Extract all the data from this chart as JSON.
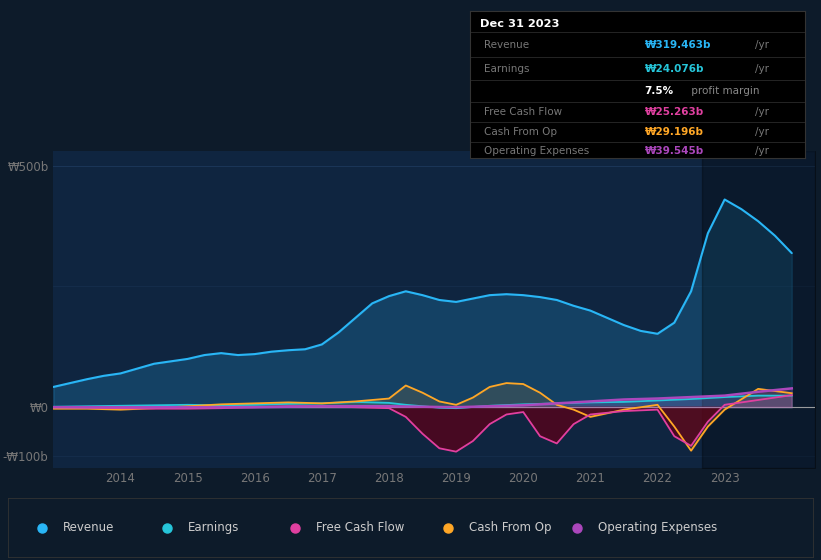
{
  "bg_color": "#0d1b2a",
  "chart_bg_color": "#0f2540",
  "ylim": [
    -125,
    530
  ],
  "xlim_start": 2013.0,
  "xlim_end": 2024.35,
  "xticks": [
    2014,
    2015,
    2016,
    2017,
    2018,
    2019,
    2020,
    2021,
    2022,
    2023
  ],
  "yticks": [
    -100,
    0,
    500
  ],
  "ytick_labels": [
    "-₩100b",
    "₩0",
    "₩500b"
  ],
  "revenue_color": "#29b6f6",
  "earnings_color": "#26c6da",
  "fcf_color": "#e040a0",
  "cfop_color": "#ffa726",
  "opex_color": "#ab47bc",
  "revenue_x": [
    2013.0,
    2013.25,
    2013.5,
    2013.75,
    2014.0,
    2014.25,
    2014.5,
    2014.75,
    2015.0,
    2015.25,
    2015.5,
    2015.75,
    2016.0,
    2016.25,
    2016.5,
    2016.75,
    2017.0,
    2017.25,
    2017.5,
    2017.75,
    2018.0,
    2018.25,
    2018.5,
    2018.75,
    2019.0,
    2019.25,
    2019.5,
    2019.75,
    2020.0,
    2020.25,
    2020.5,
    2020.75,
    2021.0,
    2021.25,
    2021.5,
    2021.75,
    2022.0,
    2022.25,
    2022.5,
    2022.75,
    2023.0,
    2023.25,
    2023.5,
    2023.75,
    2024.0
  ],
  "revenue_y": [
    42,
    50,
    58,
    65,
    70,
    80,
    90,
    95,
    100,
    108,
    112,
    108,
    110,
    115,
    118,
    120,
    130,
    155,
    185,
    215,
    230,
    240,
    232,
    222,
    218,
    225,
    232,
    234,
    232,
    228,
    222,
    210,
    200,
    185,
    170,
    158,
    152,
    175,
    240,
    360,
    430,
    410,
    385,
    355,
    319
  ],
  "earnings_x": [
    2013.0,
    2013.5,
    2014.0,
    2014.5,
    2015.0,
    2015.5,
    2016.0,
    2016.5,
    2017.0,
    2017.5,
    2018.0,
    2018.25,
    2018.5,
    2018.75,
    2019.0,
    2019.5,
    2020.0,
    2020.5,
    2021.0,
    2021.5,
    2022.0,
    2022.5,
    2023.0,
    2023.5,
    2024.0
  ],
  "earnings_y": [
    1,
    2,
    3,
    4,
    5,
    4,
    5,
    7,
    8,
    11,
    9,
    5,
    2,
    -1,
    -2,
    3,
    6,
    8,
    10,
    11,
    14,
    17,
    21,
    24,
    24
  ],
  "fcf_x": [
    2013.0,
    2013.5,
    2014.0,
    2014.5,
    2015.0,
    2015.5,
    2016.0,
    2016.5,
    2017.0,
    2017.5,
    2018.0,
    2018.25,
    2018.5,
    2018.75,
    2019.0,
    2019.25,
    2019.5,
    2019.75,
    2020.0,
    2020.25,
    2020.5,
    2020.75,
    2021.0,
    2021.5,
    2022.0,
    2022.25,
    2022.5,
    2022.75,
    2023.0,
    2023.5,
    2024.0
  ],
  "fcf_y": [
    0,
    -1,
    -2,
    -3,
    -3,
    -2,
    0,
    2,
    2,
    0,
    -2,
    -20,
    -55,
    -85,
    -92,
    -70,
    -35,
    -15,
    -10,
    -60,
    -75,
    -35,
    -15,
    -8,
    -5,
    -60,
    -80,
    -30,
    5,
    15,
    25
  ],
  "cfop_x": [
    2013.0,
    2013.5,
    2014.0,
    2014.5,
    2015.0,
    2015.5,
    2016.0,
    2016.5,
    2017.0,
    2017.5,
    2018.0,
    2018.25,
    2018.5,
    2018.75,
    2019.0,
    2019.25,
    2019.5,
    2019.75,
    2020.0,
    2020.25,
    2020.5,
    2020.75,
    2021.0,
    2021.5,
    2022.0,
    2022.25,
    2022.5,
    2022.75,
    2023.0,
    2023.5,
    2024.0
  ],
  "cfop_y": [
    -3,
    -3,
    -5,
    -2,
    2,
    6,
    8,
    10,
    8,
    12,
    18,
    45,
    30,
    12,
    5,
    20,
    42,
    50,
    48,
    30,
    5,
    -5,
    -20,
    -5,
    5,
    -40,
    -90,
    -40,
    -5,
    38,
    29
  ],
  "opex_x": [
    2013.0,
    2013.5,
    2014.0,
    2014.5,
    2015.0,
    2015.5,
    2016.0,
    2016.5,
    2017.0,
    2017.5,
    2018.0,
    2018.5,
    2019.0,
    2019.5,
    2020.0,
    2020.5,
    2021.0,
    2021.5,
    2022.0,
    2022.5,
    2023.0,
    2023.5,
    2024.0
  ],
  "opex_y": [
    0,
    0,
    0,
    0,
    0,
    0,
    0,
    1,
    2,
    2,
    2,
    1,
    0,
    2,
    4,
    8,
    12,
    16,
    18,
    21,
    24,
    32,
    39
  ],
  "tooltip_date": "Dec 31 2023",
  "tooltip_revenue_val": "₩319.463b",
  "tooltip_earnings_val": "₩24.076b",
  "tooltip_profit_margin": "7.5%",
  "tooltip_fcf_val": "₩25.263b",
  "tooltip_cfop_val": "₩29.196b",
  "tooltip_opex_val": "₩39.545b",
  "legend": [
    {
      "label": "Revenue",
      "color": "#29b6f6"
    },
    {
      "label": "Earnings",
      "color": "#26c6da"
    },
    {
      "label": "Free Cash Flow",
      "color": "#e040a0"
    },
    {
      "label": "Cash From Op",
      "color": "#ffa726"
    },
    {
      "label": "Operating Expenses",
      "color": "#ab47bc"
    }
  ]
}
